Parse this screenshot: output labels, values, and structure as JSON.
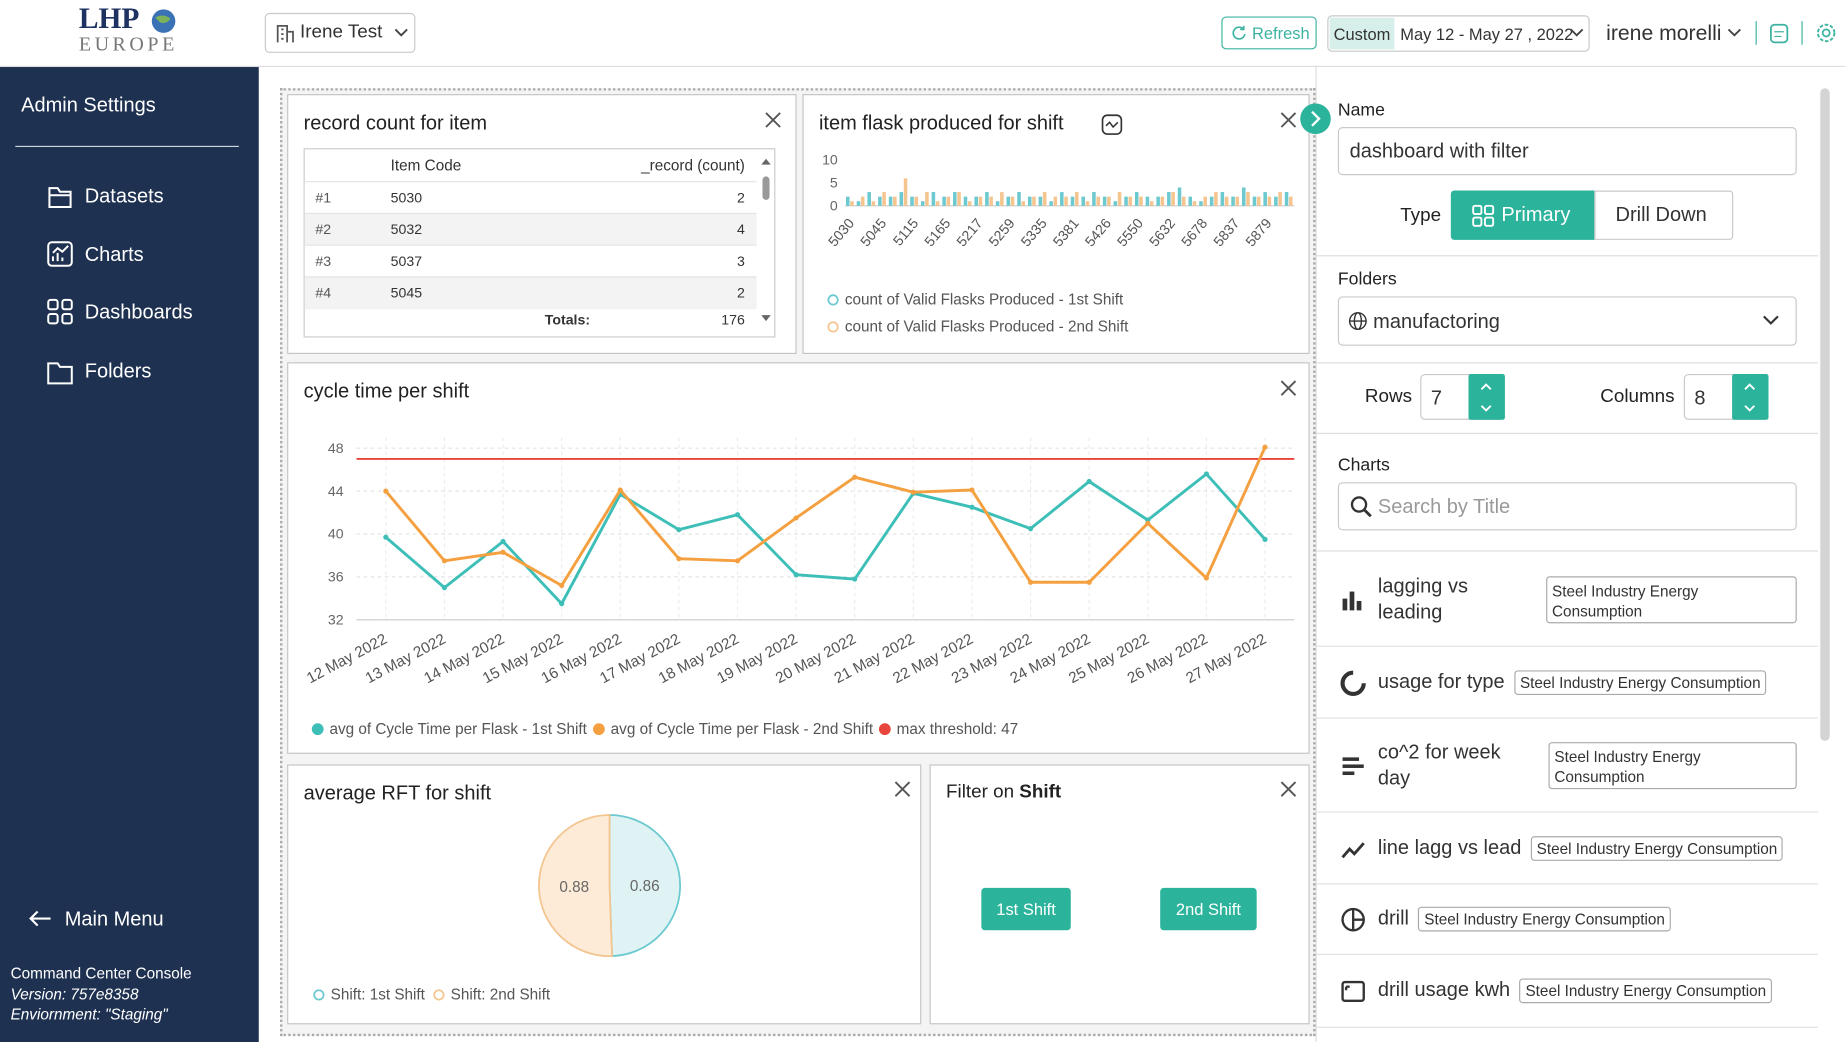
{
  "header": {
    "logo": "LHP",
    "logo_sub": "EUROPE",
    "workspace": "Irene Test",
    "refresh": "Refresh",
    "date_mode": "Custom",
    "date_range": "May 12 - May 27 , 2022",
    "user": "irene morelli"
  },
  "sidebar": {
    "title": "Admin Settings",
    "items": [
      "Datasets",
      "Charts",
      "Dashboards",
      "Folders"
    ],
    "back": "Main Menu",
    "footer": [
      "Command Center Console",
      "Version: 757e8358",
      "Enviornment: \"Staging\""
    ]
  },
  "widgets": {
    "record_table": {
      "title": "record count for item",
      "columns": [
        "Item Code",
        "_record (count)"
      ],
      "rows": [
        [
          "#1",
          "5030",
          2
        ],
        [
          "#2",
          "5032",
          4
        ],
        [
          "#3",
          "5037",
          3
        ],
        [
          "#4",
          "5045",
          2
        ]
      ],
      "totals_label": "Totals:",
      "total": 176
    },
    "flask_chart": {
      "type": "bar",
      "title": "item flask produced for shift",
      "ylim": [
        0,
        10
      ],
      "yticks": [
        0,
        5,
        10
      ],
      "categories": [
        "5030",
        null,
        null,
        "5045",
        null,
        null,
        "5115",
        null,
        null,
        "5165",
        null,
        null,
        "5217",
        null,
        null,
        "5259",
        null,
        null,
        "5335",
        null,
        null,
        "5381",
        null,
        null,
        "5426",
        null,
        null,
        "5550",
        null,
        null,
        "5632",
        null,
        null,
        "5678",
        null,
        null,
        "5837",
        null,
        null,
        "5879",
        null,
        null
      ],
      "series": [
        {
          "name": "count of Valid Flasks Produced - 1st Shift",
          "color": "#6cc9d0",
          "values": [
            2,
            1,
            3,
            2,
            2,
            3,
            2,
            1,
            3,
            2,
            3,
            2,
            2,
            3,
            1,
            2,
            3,
            2,
            2,
            1,
            3,
            2,
            2,
            3,
            2,
            1,
            2,
            3,
            2,
            2,
            3,
            4,
            2,
            1,
            2,
            3,
            2,
            4,
            2,
            3,
            2,
            3
          ]
        },
        {
          "name": "count of Valid Flasks Produced - 2nd Shift",
          "color": "#f4c58f",
          "values": [
            1,
            2,
            1,
            3,
            2,
            6,
            2,
            3,
            1,
            2,
            3,
            1,
            2,
            2,
            3,
            2,
            1,
            2,
            3,
            2,
            2,
            3,
            1,
            2,
            2,
            3,
            2,
            2,
            1,
            2,
            3,
            2,
            1,
            2,
            3,
            2,
            2,
            3,
            2,
            2,
            3,
            2
          ]
        }
      ]
    },
    "cycle_chart": {
      "type": "line",
      "title": "cycle time per shift",
      "ylim": [
        32,
        49
      ],
      "yticks": [
        32,
        36,
        40,
        44,
        48
      ],
      "grid": true,
      "categories": [
        "12 May 2022",
        "13 May 2022",
        "14 May 2022",
        "15 May 2022",
        "16 May 2022",
        "17 May 2022",
        "18 May 2022",
        "19 May 2022",
        "20 May 2022",
        "21 May 2022",
        "22 May 2022",
        "23 May 2022",
        "24 May 2022",
        "25 May 2022",
        "26 May 2022",
        "27 May 2022"
      ],
      "series": [
        {
          "name": "avg of Cycle Time per Flask - 1st Shift",
          "color": "#3dbfb8",
          "values": [
            39.7,
            35,
            39.3,
            33.5,
            43.7,
            40.4,
            41.8,
            36.2,
            35.8,
            43.8,
            42.5,
            40.5,
            44.9,
            41.3,
            45.6,
            39.5
          ]
        },
        {
          "name": "avg of Cycle Time per Flask - 2nd Shift",
          "color": "#f5a040",
          "values": [
            44,
            37.5,
            38.3,
            35.2,
            44.1,
            37.7,
            37.5,
            41.5,
            45.3,
            43.9,
            44.1,
            35.5,
            35.5,
            41,
            35.9,
            48.1
          ]
        }
      ],
      "threshold": {
        "label": "max threshold: 47",
        "value": 47,
        "color": "#e8463c"
      }
    },
    "rft_chart": {
      "type": "pie",
      "title": "average RFT for shift",
      "categories": [
        "Shift: 1st Shift",
        "Shift: 2nd Shift"
      ],
      "values": [
        0.86,
        0.88
      ],
      "colors": [
        "#6cc9d0",
        "#f4c58f"
      ],
      "fills": [
        "#dff3f4",
        "#fdebd7"
      ]
    },
    "shift_filter": {
      "title": "Filter on",
      "field": "Shift",
      "options": [
        "1st Shift",
        "2nd Shift"
      ]
    }
  },
  "panel": {
    "name_label": "Name",
    "name_value": "dashboard with filter",
    "type_label": "Type",
    "type_options": [
      "Primary",
      "Drill Down"
    ],
    "folders_label": "Folders",
    "folder": "manufactoring",
    "rows_label": "Rows",
    "rows": 7,
    "columns_label": "Columns",
    "columns": 8,
    "charts_label": "Charts",
    "search_placeholder": "Search by Title",
    "chart_list": [
      {
        "title": "lagging vs leading",
        "dataset": "Steel Industry Energy Consumption"
      },
      {
        "title": "usage for type",
        "dataset": "Steel Industry Energy Consumption"
      },
      {
        "title": "co^2 for week day",
        "dataset": "Steel Industry Energy Consumption"
      },
      {
        "title": "line lagg vs lead",
        "dataset": "Steel Industry Energy Consumption"
      },
      {
        "title": "drill",
        "dataset": "Steel Industry Energy Consumption"
      },
      {
        "title": "drill usage kwh",
        "dataset": "Steel Industry Energy Consumption"
      }
    ]
  }
}
